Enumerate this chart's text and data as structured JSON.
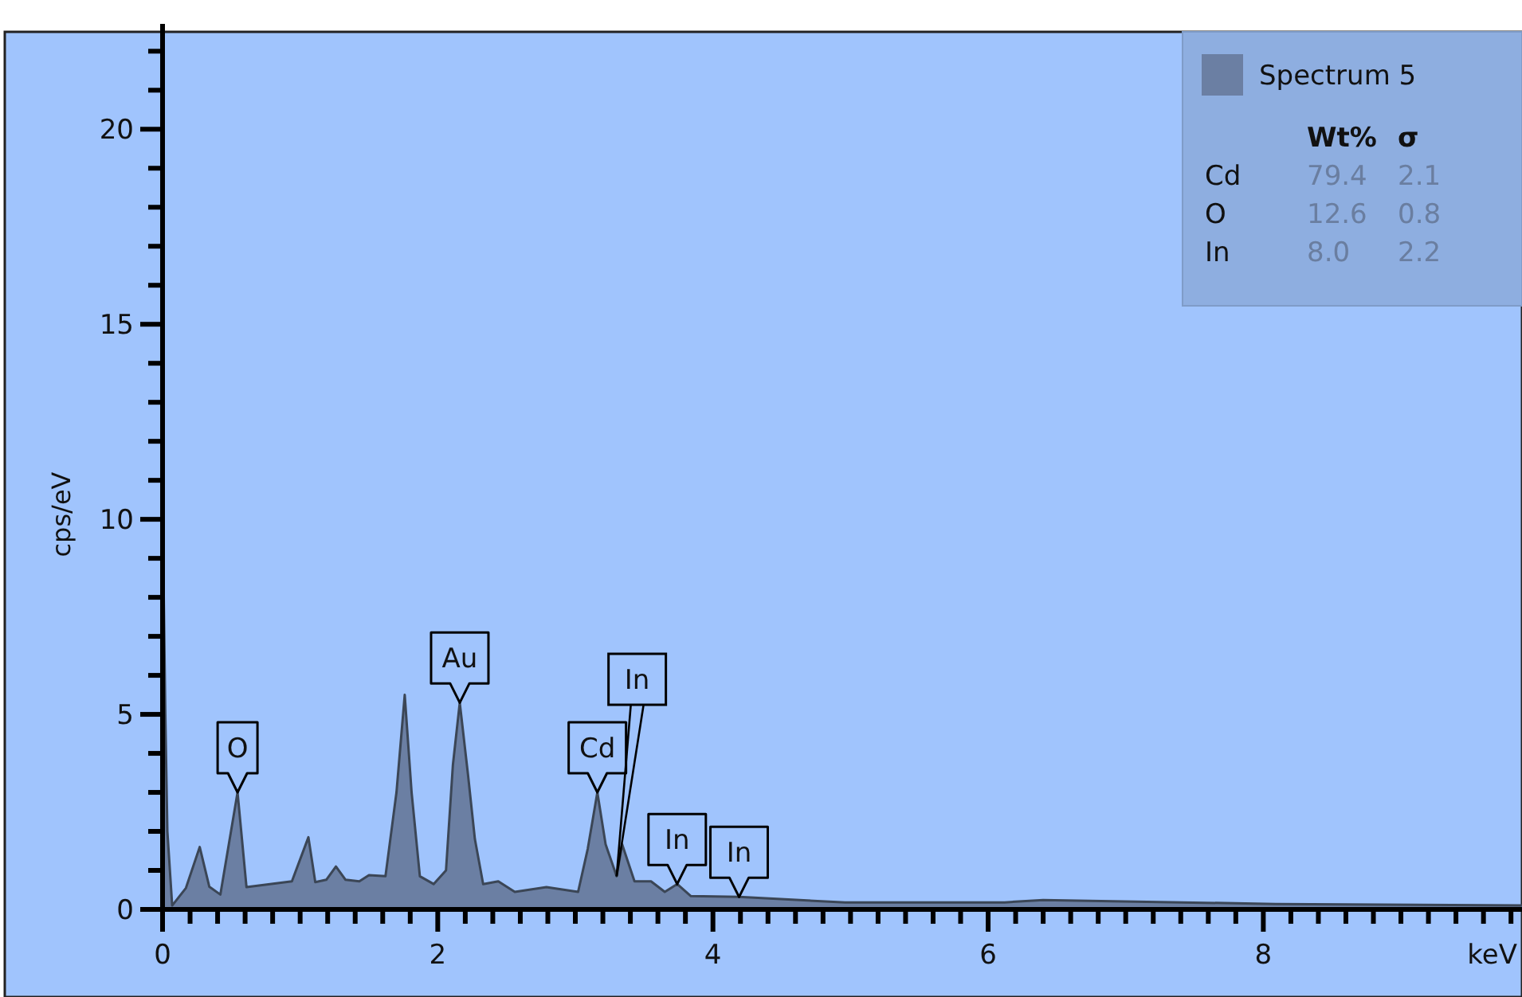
{
  "chart_data": {
    "type": "area",
    "xlabel": "keV",
    "ylabel": "cps/eV",
    "legend": "top right",
    "grid": false,
    "xlim": [
      0,
      9.88
    ],
    "ylim": [
      0,
      22.7
    ],
    "xticks": [
      0,
      {
        "value": 0.2,
        "label": null
      },
      {
        "value": 0.4,
        "label": null
      },
      {
        "value": 0.6,
        "label": null
      },
      {
        "value": 0.8,
        "label": null
      },
      {
        "value": 1,
        "label": null
      },
      {
        "value": 1.2,
        "label": null
      },
      {
        "value": 1.4,
        "label": null
      },
      {
        "value": 1.6,
        "label": null
      },
      {
        "value": 1.8,
        "label": null
      },
      2,
      {
        "value": 2.2,
        "label": null
      },
      {
        "value": 2.4,
        "label": null
      },
      {
        "value": 2.6,
        "label": null
      },
      {
        "value": 2.8,
        "label": null
      },
      {
        "value": 3,
        "label": null
      },
      {
        "value": 3.2,
        "label": null
      },
      {
        "value": 3.4,
        "label": null
      },
      {
        "value": 3.6,
        "label": null
      },
      {
        "value": 3.8,
        "label": null
      },
      4,
      {
        "value": 4.2,
        "label": null
      },
      {
        "value": 4.4,
        "label": null
      },
      {
        "value": 4.6,
        "label": null
      },
      {
        "value": 4.8,
        "label": null
      },
      {
        "value": 5,
        "label": null
      },
      {
        "value": 5.2,
        "label": null
      },
      {
        "value": 5.4,
        "label": null
      },
      {
        "value": 5.6,
        "label": null
      },
      {
        "value": 5.8,
        "label": null
      },
      6,
      {
        "value": 6.2,
        "label": null
      },
      {
        "value": 6.4,
        "label": null
      },
      {
        "value": 6.6,
        "label": null
      },
      {
        "value": 6.8,
        "label": null
      },
      {
        "value": 7,
        "label": null
      },
      {
        "value": 7.2,
        "label": null
      },
      {
        "value": 7.4,
        "label": null
      },
      {
        "value": 7.6,
        "label": null
      },
      {
        "value": 7.8,
        "label": null
      },
      8,
      {
        "value": 8.2,
        "label": null
      },
      {
        "value": 8.4,
        "label": null
      },
      {
        "value": 8.6,
        "label": null
      },
      {
        "value": 8.8,
        "label": null
      },
      {
        "value": 9,
        "label": null
      },
      {
        "value": 9.2,
        "label": null
      },
      {
        "value": 9.4,
        "label": null
      },
      {
        "value": 9.6,
        "label": null
      },
      {
        "value": 9.8,
        "label": null
      }
    ],
    "yticks": [
      0,
      {
        "value": 1,
        "label": null
      },
      {
        "value": 2,
        "label": null
      },
      {
        "value": 3,
        "label": null
      },
      {
        "value": 4,
        "label": null
      },
      5,
      {
        "value": 6,
        "label": null
      },
      {
        "value": 7,
        "label": null
      },
      {
        "value": 8,
        "label": null
      },
      {
        "value": 9,
        "label": null
      },
      10,
      {
        "value": 11,
        "label": null
      },
      {
        "value": 12,
        "label": null
      },
      {
        "value": 13,
        "label": null
      },
      {
        "value": 14,
        "label": null
      },
      15,
      {
        "value": 16,
        "label": null
      },
      {
        "value": 17,
        "label": null
      },
      {
        "value": 18,
        "label": null
      },
      {
        "value": 19,
        "label": null
      },
      20,
      {
        "value": 21,
        "label": null
      },
      {
        "value": 22,
        "label": null
      }
    ],
    "series": [
      {
        "name": "Spectrum 5",
        "color": "#6b7fa3",
        "x": [
          0,
          0.005,
          0.02,
          0.035,
          0.07,
          0.17,
          0.27,
          0.34,
          0.42,
          0.545,
          0.61,
          0.94,
          1.06,
          1.11,
          1.19,
          1.26,
          1.33,
          1.43,
          1.5,
          1.62,
          1.7,
          1.76,
          1.81,
          1.87,
          1.97,
          2.06,
          2.11,
          2.16,
          2.22,
          2.27,
          2.33,
          2.44,
          2.56,
          2.79,
          3.02,
          3.09,
          3.16,
          3.22,
          3.3,
          3.34,
          3.43,
          3.55,
          3.65,
          3.74,
          3.84,
          4.19,
          4.96,
          6.12,
          6.4,
          8.09,
          9.88
        ],
        "values": [
          0,
          9.0,
          5.0,
          2.0,
          0.1,
          0.55,
          1.6,
          0.58,
          0.38,
          3.0,
          0.57,
          0.72,
          1.85,
          0.7,
          0.76,
          1.1,
          0.76,
          0.72,
          0.88,
          0.85,
          3.0,
          5.5,
          3.0,
          0.85,
          0.65,
          1.0,
          3.7,
          5.3,
          3.45,
          1.8,
          0.65,
          0.72,
          0.45,
          0.57,
          0.45,
          1.55,
          3.0,
          1.67,
          0.85,
          1.67,
          0.72,
          0.72,
          0.45,
          0.65,
          0.34,
          0.32,
          0.18,
          0.18,
          0.24,
          0.14,
          0.1
        ]
      }
    ],
    "annotations": [
      {
        "text": "O",
        "x": 0.545,
        "y": 3.0
      },
      {
        "text": "Au",
        "x": 2.16,
        "y": 5.3
      },
      {
        "text": "Cd",
        "x": 3.16,
        "y": 3.0
      },
      {
        "text": "In",
        "x": 3.3,
        "y": 0.85
      },
      {
        "text": "In",
        "x": 3.74,
        "y": 0.65
      },
      {
        "text": "In",
        "x": 4.19,
        "y": 0.32
      },
      "Wt%",
      "σ",
      "Cd",
      "79.4",
      "2.1",
      "O",
      "12.6",
      "0.8",
      "In",
      "8.0",
      "2.2"
    ]
  }
}
